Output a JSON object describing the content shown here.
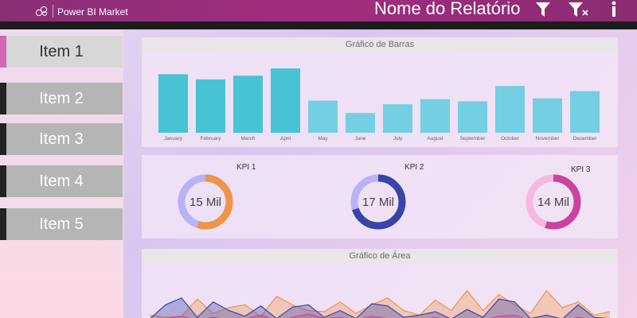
{
  "header": {
    "app_name": "Power BI Market",
    "report_title": "Nome do Relatório",
    "icons": [
      "logo-icon",
      "filter-icon",
      "clear-filter-icon",
      "info-icon"
    ]
  },
  "sidebar": {
    "items": [
      {
        "label": "Item 1",
        "active": true
      },
      {
        "label": "Item 2",
        "active": false
      },
      {
        "label": "Item 3",
        "active": false
      },
      {
        "label": "Item 4",
        "active": false
      },
      {
        "label": "Item 5",
        "active": false
      }
    ],
    "accent_color": "#d068b6"
  },
  "bar_panel": {
    "title": "Gráfico de Barras"
  },
  "kpi_panel": {
    "kpis": [
      {
        "label": "KPI 1",
        "value": "15 Mil",
        "fraction": 0.55,
        "fill_color": "#f0944a",
        "rest_color": "#b9b2f5"
      },
      {
        "label": "KPI 2",
        "value": "17 Mil",
        "fraction": 0.7,
        "fill_color": "#3845a8",
        "rest_color": "#b9b2f5"
      },
      {
        "label": "KPI 3",
        "value": "14 Mil",
        "fraction": 0.55,
        "fill_color": "#c9449f",
        "rest_color": "#f7b8df"
      }
    ]
  },
  "area_panel": {
    "title": "Gráfico de Área"
  },
  "chart_data": [
    {
      "type": "bar",
      "categories": [
        "January",
        "February",
        "March",
        "April",
        "May",
        "June",
        "July",
        "August",
        "September",
        "October",
        "November",
        "December"
      ],
      "values": [
        80,
        73,
        78,
        88,
        44,
        27,
        39,
        46,
        43,
        64,
        47,
        57
      ],
      "highlight": [
        true,
        true,
        true,
        true,
        false,
        false,
        false,
        false,
        false,
        false,
        false,
        false
      ],
      "ylim": [
        0,
        100
      ],
      "colors": {
        "highlight": "#47c3d4",
        "normal": "#74cfe2"
      }
    },
    {
      "type": "area",
      "ylim": [
        0,
        100
      ],
      "series": [
        {
          "color": "#f0944a",
          "values": [
            12,
            8,
            10,
            40,
            15,
            25,
            30,
            10,
            45,
            30,
            20,
            18,
            35,
            15,
            30,
            42,
            20,
            12,
            38,
            20,
            55,
            20,
            48,
            30,
            15,
            55,
            25,
            35,
            12,
            18
          ]
        },
        {
          "color": "#3845a8",
          "values": [
            5,
            30,
            42,
            8,
            35,
            20,
            10,
            28,
            6,
            26,
            30,
            8,
            20,
            6,
            32,
            28,
            8,
            12,
            18,
            5,
            22,
            8,
            40,
            35,
            6,
            12,
            5,
            30,
            8,
            6
          ]
        },
        {
          "color": "#c9449f",
          "values": [
            2,
            6,
            10,
            3,
            8,
            4,
            5,
            12,
            2,
            8,
            14,
            6,
            8,
            3,
            10,
            6,
            2,
            4,
            8,
            2,
            6,
            3,
            10,
            12,
            2,
            5,
            2,
            8,
            3,
            2
          ]
        }
      ]
    }
  ]
}
